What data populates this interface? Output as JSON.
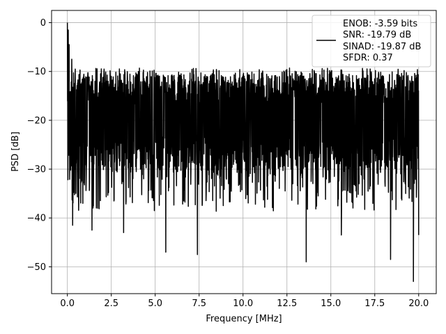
{
  "chart_data": {
    "type": "line",
    "title": "",
    "xlabel": "Frequency [MHz]",
    "ylabel": "PSD [dB]",
    "xlim": [
      -0.9,
      21.0
    ],
    "ylim": [
      -55.5,
      2.5
    ],
    "x_ticks": [
      0.0,
      2.5,
      5.0,
      7.5,
      10.0,
      12.5,
      15.0,
      17.5,
      20.0
    ],
    "x_tick_labels": [
      "0.0",
      "2.5",
      "5.0",
      "7.5",
      "10.0",
      "12.5",
      "15.0",
      "17.5",
      "20.0"
    ],
    "y_ticks": [
      0,
      -10,
      -20,
      -30,
      -40,
      -50
    ],
    "y_tick_labels": [
      "0",
      "−10",
      "−20",
      "−30",
      "−40",
      "−50"
    ],
    "grid": true,
    "legend_placement": "top-right",
    "legend_lines": [
      "ENOB: -3.59 bits",
      "SNR: -19.79 dB",
      "SINAD: -19.87 dB",
      "SFDR: 0.37"
    ],
    "series": [
      {
        "color": "#000000",
        "x_range": [
          0.0,
          20.0
        ],
        "num_points": 2000,
        "typical_range_db": [
          -30,
          -10
        ],
        "peak_points": [
          [
            0.0,
            0.0
          ],
          [
            0.05,
            -1.5
          ],
          [
            0.1,
            -4.5
          ],
          [
            0.25,
            -7.5
          ],
          [
            0.45,
            -9.5
          ]
        ],
        "min_points": [
          [
            0.3,
            -41.5
          ],
          [
            1.4,
            -42.5
          ],
          [
            3.2,
            -43.0
          ],
          [
            5.6,
            -47.0
          ],
          [
            7.4,
            -47.5
          ],
          [
            13.6,
            -49.0
          ],
          [
            15.6,
            -43.5
          ],
          [
            18.4,
            -48.5
          ],
          [
            19.7,
            -53.0
          ],
          [
            20.0,
            -43.5
          ]
        ]
      }
    ]
  },
  "colors": {
    "line": "#000000",
    "grid": "#b0b0b0",
    "axes": "#000000",
    "background": "#ffffff"
  }
}
